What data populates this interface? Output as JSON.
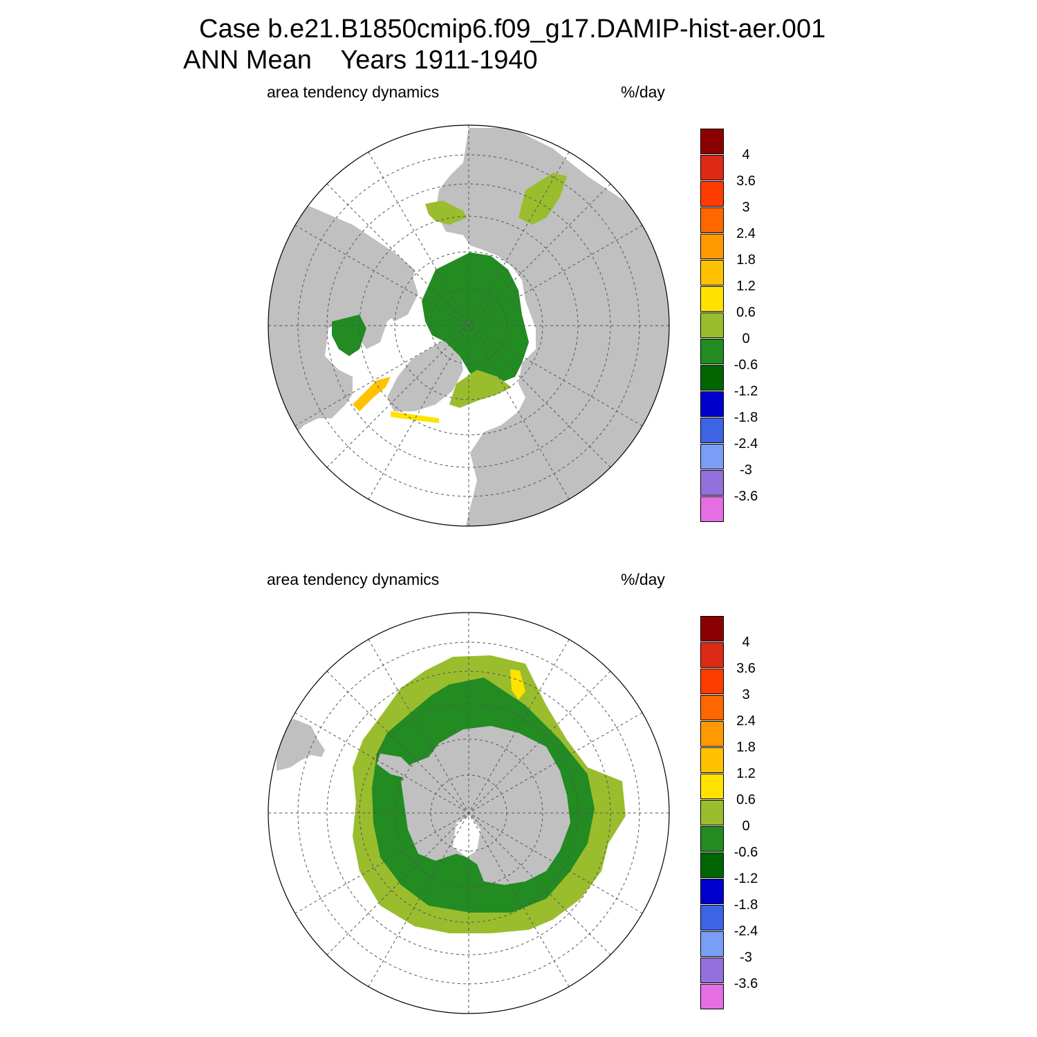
{
  "title": {
    "line1": "Case b.e21.B1850cmip6.f09_g17.DAMIP-hist-aer.001",
    "line2": "ANN Mean    Years 1911-1940"
  },
  "panels": [
    {
      "id": "north",
      "left_label": "area tendency dynamics",
      "right_label": "%/day",
      "hemisphere": "north"
    },
    {
      "id": "south",
      "left_label": "area tendency dynamics",
      "right_label": "%/day",
      "hemisphere": "south"
    }
  ],
  "colorbar": {
    "colors": [
      "#8b0000",
      "#dc2a14",
      "#ff3c00",
      "#ff6600",
      "#ff9900",
      "#ffc200",
      "#ffe200",
      "#9abd2e",
      "#228b22",
      "#006400",
      "#0000cd",
      "#3e64e6",
      "#7a9ef5",
      "#9370db",
      "#e46ee2"
    ],
    "labels": [
      "4",
      "3.6",
      "3",
      "2.4",
      "1.8",
      "1.2",
      "0.6",
      "0",
      "-0.6",
      "-1.2",
      "-1.8",
      "-2.4",
      "-3",
      "-3.6"
    ]
  },
  "map_colors": {
    "land": "#c0c0c0",
    "ocean": "#ffffff",
    "grid": "#555555"
  }
}
